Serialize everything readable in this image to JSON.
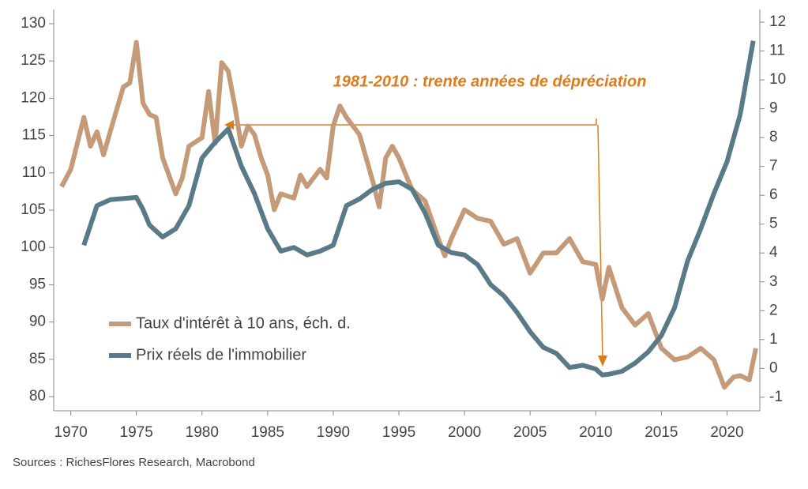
{
  "chart_data": {
    "type": "line",
    "annotation": "1981-2010 : trente années de dépréciation",
    "source": "Sources : RichesFlores Research, Macrobond",
    "xlim": [
      1968.7,
      2022.5
    ],
    "xticks": [
      1970,
      1975,
      1980,
      1985,
      1990,
      1995,
      2000,
      2005,
      2010,
      2015,
      2020
    ],
    "ylim": [
      78.1,
      131.9
    ],
    "yticks": [
      80,
      85,
      90,
      95,
      100,
      105,
      110,
      115,
      120,
      125,
      130
    ],
    "y2lim": [
      -1.47,
      12.44
    ],
    "y2ticks": [
      -1,
      0,
      1,
      2,
      3,
      4,
      5,
      6,
      7,
      8,
      9,
      10,
      11,
      12
    ],
    "legend": "left",
    "series": [
      {
        "name": "Taux d'intérêt à 10 ans, éch. d.",
        "color": "#c49a78",
        "axis": "y2",
        "x": [
          1969.3,
          1970,
          1971,
          1971.5,
          1972,
          1972.5,
          1973,
          1974,
          1974.5,
          1975,
          1975.5,
          1976,
          1976.5,
          1977,
          1978,
          1978.5,
          1979,
          1980,
          1980.5,
          1981,
          1981.5,
          1982,
          1982.5,
          1983,
          1983.5,
          1984,
          1984.5,
          1985,
          1985.5,
          1986,
          1987,
          1987.5,
          1988,
          1989,
          1989.5,
          1990,
          1990.5,
          1991,
          1992,
          1993,
          1993.5,
          1994,
          1994.5,
          1995,
          1996,
          1997,
          1998,
          1998.5,
          1999,
          2000,
          2001,
          2002,
          2003,
          2004,
          2005,
          2006,
          2007,
          2008,
          2009,
          2010,
          2010.5,
          2011,
          2012,
          2013,
          2014,
          2015,
          2016,
          2017,
          2018,
          2019,
          2019.8,
          2020.5,
          2021,
          2021.7,
          2022.2
        ],
        "values": [
          6.3,
          6.9,
          8.7,
          7.7,
          8.2,
          7.4,
          8.2,
          9.75,
          9.9,
          11.3,
          9.2,
          8.8,
          8.7,
          7.3,
          6.05,
          6.6,
          7.7,
          8.0,
          9.6,
          7.8,
          10.6,
          10.3,
          9.1,
          7.7,
          8.4,
          8.1,
          7.3,
          6.7,
          5.5,
          6.05,
          5.9,
          6.7,
          6.3,
          6.9,
          6.6,
          8.4,
          9.1,
          8.7,
          8.1,
          6.5,
          5.6,
          7.3,
          7.7,
          7.3,
          6.2,
          5.8,
          4.5,
          3.9,
          4.5,
          5.5,
          5.2,
          5.1,
          4.3,
          4.5,
          3.3,
          4.0,
          4.0,
          4.5,
          3.7,
          3.6,
          2.4,
          3.5,
          2.1,
          1.5,
          1.9,
          0.7,
          0.3,
          0.4,
          0.7,
          0.3,
          -0.65,
          -0.3,
          -0.25,
          -0.4,
          0.7
        ]
      },
      {
        "name": "Prix réels de l'immobilier",
        "color": "#5a7a87",
        "axis": "y",
        "x": [
          1971,
          1972,
          1973,
          1975,
          1975.5,
          1976,
          1977,
          1978,
          1979,
          1980,
          1981,
          1982,
          1983,
          1984,
          1985,
          1986,
          1987,
          1988,
          1989,
          1990,
          1991,
          1992,
          1993,
          1994,
          1995,
          1996,
          1997,
          1998,
          1999,
          2000,
          2001,
          2002,
          2003,
          2004,
          2005,
          2006,
          2007,
          2008,
          2009,
          2010,
          2010.5,
          2011,
          2012,
          2013,
          2014,
          2015,
          2016,
          2017,
          2018,
          2019,
          2020,
          2021,
          2022
        ],
        "values": [
          100.3,
          105.6,
          106.4,
          106.7,
          105.1,
          103,
          101.4,
          102.5,
          105.6,
          112,
          114.1,
          115.9,
          110.9,
          107.2,
          102.5,
          99.5,
          100,
          99,
          99.5,
          100.3,
          105.6,
          106.5,
          107.8,
          108.6,
          108.8,
          107.8,
          104.6,
          100.3,
          99.3,
          99,
          97.7,
          95,
          93.5,
          91.3,
          88.7,
          86.6,
          85.8,
          83.9,
          84.2,
          83.7,
          82.9,
          83,
          83.4,
          84.5,
          86,
          88.2,
          91.9,
          98.2,
          102.5,
          107.2,
          111.5,
          117.8,
          127.7
        ]
      }
    ]
  }
}
